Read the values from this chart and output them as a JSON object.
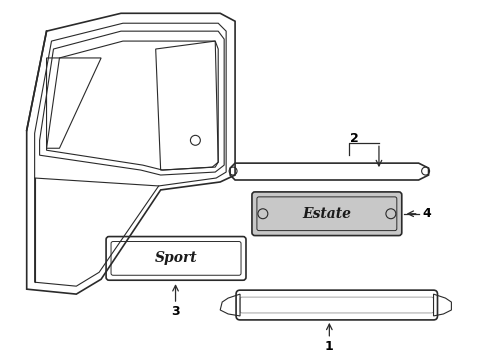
{
  "background_color": "#ffffff",
  "line_color": "#2a2a2a",
  "label_color": "#000000",
  "fig_width": 4.9,
  "fig_height": 3.6,
  "dpi": 100,
  "label_fontsize": 9
}
